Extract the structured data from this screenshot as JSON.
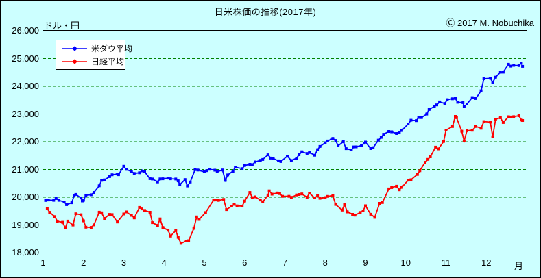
{
  "header": {
    "title": "日米株価の推移(2017年)",
    "copyright": "Ⓒ 2017 M. Nobuchika",
    "unit_label": "ドル・円"
  },
  "axis": {
    "x_unit_label": "月",
    "x_ticks": [
      "1",
      "2",
      "3",
      "4",
      "5",
      "6",
      "7",
      "8",
      "9",
      "10",
      "11",
      "12"
    ],
    "y_ticks": [
      "26,000",
      "25,000",
      "24,000",
      "23,000",
      "22,000",
      "21,000",
      "20,000",
      "19,000",
      "18,000"
    ]
  },
  "colors": {
    "background": "#CCFFFF",
    "grid": "#008000",
    "border": "#000000",
    "dow": "#0000FF",
    "nikkei": "#FF0000"
  },
  "chart_data": {
    "type": "line",
    "title": "日米株価の推移(2017年)",
    "xlabel": "月",
    "ylabel": "ドル・円",
    "xlim": [
      1,
      13
    ],
    "ylim": [
      18000,
      26000
    ],
    "y_tick_step": 1000,
    "grid": "horizontal, dashed, green",
    "legend_position": "top-left",
    "x_encoding": "decimal month (1 = Jan 1, 13 = Dec 31)",
    "series": [
      {
        "name": "米ダウ平均",
        "color": "#0000FF",
        "points": [
          [
            1.06,
            19882
          ],
          [
            1.13,
            19899
          ],
          [
            1.26,
            19887
          ],
          [
            1.32,
            19954
          ],
          [
            1.39,
            19886
          ],
          [
            1.52,
            19827
          ],
          [
            1.58,
            19732
          ],
          [
            1.71,
            19799
          ],
          [
            1.77,
            20068
          ],
          [
            1.81,
            20101
          ],
          [
            1.94,
            19971
          ],
          [
            1.97,
            19864
          ],
          [
            2.0,
            19890
          ],
          [
            2.06,
            20071
          ],
          [
            2.19,
            20090
          ],
          [
            2.26,
            20172
          ],
          [
            2.39,
            20412
          ],
          [
            2.45,
            20611
          ],
          [
            2.52,
            20624
          ],
          [
            2.65,
            20743
          ],
          [
            2.71,
            20810
          ],
          [
            2.84,
            20837
          ],
          [
            2.87,
            20812
          ],
          [
            3.0,
            21116
          ],
          [
            3.06,
            21006
          ],
          [
            3.19,
            20924
          ],
          [
            3.26,
            20858
          ],
          [
            3.39,
            20881
          ],
          [
            3.45,
            20950
          ],
          [
            3.52,
            20915
          ],
          [
            3.65,
            20668
          ],
          [
            3.71,
            20657
          ],
          [
            3.84,
            20550
          ],
          [
            3.9,
            20659
          ],
          [
            3.97,
            20663
          ],
          [
            4.1,
            20689
          ],
          [
            4.16,
            20663
          ],
          [
            4.29,
            20658
          ],
          [
            4.35,
            20591
          ],
          [
            4.39,
            20453
          ],
          [
            4.52,
            20636
          ],
          [
            4.58,
            20404
          ],
          [
            4.65,
            20548
          ],
          [
            4.77,
            20996
          ],
          [
            4.84,
            20981
          ],
          [
            5.0,
            20913
          ],
          [
            5.06,
            20958
          ],
          [
            5.13,
            21007
          ],
          [
            5.26,
            20976
          ],
          [
            5.32,
            20919
          ],
          [
            5.45,
            20982
          ],
          [
            5.52,
            20607
          ],
          [
            5.58,
            20805
          ],
          [
            5.71,
            20938
          ],
          [
            5.77,
            21083
          ],
          [
            5.94,
            21029
          ],
          [
            6.0,
            21144
          ],
          [
            6.13,
            21184
          ],
          [
            6.19,
            21174
          ],
          [
            6.26,
            21272
          ],
          [
            6.39,
            21328
          ],
          [
            6.45,
            21360
          ],
          [
            6.58,
            21528
          ],
          [
            6.65,
            21410
          ],
          [
            6.71,
            21395
          ],
          [
            6.84,
            21311
          ],
          [
            6.9,
            21287
          ],
          [
            7.06,
            21479
          ],
          [
            7.16,
            21320
          ],
          [
            7.29,
            21408
          ],
          [
            7.35,
            21532
          ],
          [
            7.42,
            21638
          ],
          [
            7.55,
            21575
          ],
          [
            7.61,
            21612
          ],
          [
            7.74,
            21513
          ],
          [
            7.81,
            21711
          ],
          [
            7.87,
            21830
          ],
          [
            8.0,
            21963
          ],
          [
            8.06,
            22026
          ],
          [
            8.19,
            22118
          ],
          [
            8.26,
            22048
          ],
          [
            8.32,
            21858
          ],
          [
            8.45,
            21999
          ],
          [
            8.52,
            21750
          ],
          [
            8.65,
            21703
          ],
          [
            8.71,
            21813
          ],
          [
            8.77,
            21814
          ],
          [
            8.9,
            21865
          ],
          [
            8.97,
            21948
          ],
          [
            9.0,
            21988
          ],
          [
            9.13,
            21753
          ],
          [
            9.19,
            21785
          ],
          [
            9.32,
            22057
          ],
          [
            9.39,
            22158
          ],
          [
            9.45,
            22268
          ],
          [
            9.58,
            22371
          ],
          [
            9.65,
            22359
          ],
          [
            9.77,
            22296
          ],
          [
            9.84,
            22341
          ],
          [
            9.9,
            22405
          ],
          [
            10.06,
            22642
          ],
          [
            10.13,
            22775
          ],
          [
            10.26,
            22761
          ],
          [
            10.32,
            22873
          ],
          [
            10.39,
            22872
          ],
          [
            10.52,
            22997
          ],
          [
            10.58,
            23163
          ],
          [
            10.71,
            23274
          ],
          [
            10.77,
            23329
          ],
          [
            10.84,
            23434
          ],
          [
            10.97,
            23377
          ],
          [
            11.03,
            23516
          ],
          [
            11.16,
            23549
          ],
          [
            11.23,
            23563
          ],
          [
            11.29,
            23422
          ],
          [
            11.42,
            23410
          ],
          [
            11.45,
            23271
          ],
          [
            11.52,
            23358
          ],
          [
            11.65,
            23591
          ],
          [
            11.74,
            23558
          ],
          [
            11.87,
            23837
          ],
          [
            11.94,
            24272
          ],
          [
            12.1,
            24290
          ],
          [
            12.16,
            24141
          ],
          [
            12.23,
            24329
          ],
          [
            12.35,
            24505
          ],
          [
            12.42,
            24509
          ],
          [
            12.55,
            24792
          ],
          [
            12.61,
            24727
          ],
          [
            12.68,
            24754
          ],
          [
            12.81,
            24746
          ],
          [
            12.87,
            24838
          ],
          [
            12.9,
            24719
          ]
        ]
      },
      {
        "name": "日経平均",
        "color": "#FF0000",
        "points": [
          [
            1.1,
            19594
          ],
          [
            1.16,
            19454
          ],
          [
            1.29,
            19301
          ],
          [
            1.35,
            19134
          ],
          [
            1.48,
            19096
          ],
          [
            1.55,
            18894
          ],
          [
            1.61,
            19138
          ],
          [
            1.74,
            18997
          ],
          [
            1.81,
            19402
          ],
          [
            1.94,
            19369
          ],
          [
            2.0,
            19148
          ],
          [
            2.06,
            18918
          ],
          [
            2.19,
            18911
          ],
          [
            2.26,
            19002
          ],
          [
            2.39,
            19459
          ],
          [
            2.45,
            19438
          ],
          [
            2.52,
            19235
          ],
          [
            2.65,
            19381
          ],
          [
            2.71,
            19372
          ],
          [
            2.84,
            19107
          ],
          [
            3.0,
            19394
          ],
          [
            3.06,
            19469
          ],
          [
            3.19,
            19345
          ],
          [
            3.26,
            19255
          ],
          [
            3.39,
            19633
          ],
          [
            3.45,
            19578
          ],
          [
            3.52,
            19522
          ],
          [
            3.65,
            19456
          ],
          [
            3.71,
            19085
          ],
          [
            3.84,
            18986
          ],
          [
            3.9,
            19217
          ],
          [
            3.97,
            18909
          ],
          [
            4.1,
            18810
          ],
          [
            4.16,
            18598
          ],
          [
            4.29,
            18798
          ],
          [
            4.35,
            18553
          ],
          [
            4.42,
            18335
          ],
          [
            4.55,
            18419
          ],
          [
            4.61,
            18431
          ],
          [
            4.74,
            18876
          ],
          [
            4.81,
            19290
          ],
          [
            4.87,
            19197
          ],
          [
            5.03,
            19446
          ],
          [
            5.23,
            19896
          ],
          [
            5.29,
            19900
          ],
          [
            5.35,
            19884
          ],
          [
            5.48,
            19919
          ],
          [
            5.55,
            19553
          ],
          [
            5.68,
            19678
          ],
          [
            5.74,
            19743
          ],
          [
            5.81,
            19687
          ],
          [
            5.94,
            19678
          ],
          [
            6.0,
            19861
          ],
          [
            6.13,
            20171
          ],
          [
            6.19,
            19984
          ],
          [
            6.26,
            20013
          ],
          [
            6.39,
            19899
          ],
          [
            6.45,
            19832
          ],
          [
            6.58,
            20067
          ],
          [
            6.61,
            20230
          ],
          [
            6.68,
            20111
          ],
          [
            6.81,
            20153
          ],
          [
            6.87,
            20130
          ],
          [
            6.94,
            20033
          ],
          [
            7.1,
            20032
          ],
          [
            7.16,
            19995
          ],
          [
            7.29,
            20081
          ],
          [
            7.35,
            20098
          ],
          [
            7.42,
            20119
          ],
          [
            7.55,
            19999
          ],
          [
            7.61,
            20145
          ],
          [
            7.74,
            19976
          ],
          [
            7.81,
            20050
          ],
          [
            7.87,
            19960
          ],
          [
            8.0,
            19985
          ],
          [
            8.06,
            20029
          ],
          [
            8.19,
            20055
          ],
          [
            8.26,
            19739
          ],
          [
            8.42,
            19537
          ],
          [
            8.48,
            19729
          ],
          [
            8.55,
            19470
          ],
          [
            8.68,
            19383
          ],
          [
            8.74,
            19353
          ],
          [
            8.87,
            19450
          ],
          [
            8.94,
            19507
          ],
          [
            9.0,
            19691
          ],
          [
            9.13,
            19385
          ],
          [
            9.23,
            19275
          ],
          [
            9.35,
            19777
          ],
          [
            9.42,
            19807
          ],
          [
            9.58,
            20299
          ],
          [
            9.65,
            20347
          ],
          [
            9.77,
            20398
          ],
          [
            9.84,
            20267
          ],
          [
            9.9,
            20356
          ],
          [
            10.06,
            20614
          ],
          [
            10.13,
            20629
          ],
          [
            10.29,
            20823
          ],
          [
            10.35,
            20955
          ],
          [
            10.48,
            21256
          ],
          [
            10.55,
            21363
          ],
          [
            10.61,
            21458
          ],
          [
            10.74,
            21805
          ],
          [
            10.81,
            21740
          ],
          [
            10.94,
            22011
          ],
          [
            11.0,
            22420
          ],
          [
            11.16,
            22548
          ],
          [
            11.23,
            22914
          ],
          [
            11.26,
            22868
          ],
          [
            11.39,
            22381
          ],
          [
            11.45,
            22028
          ],
          [
            11.52,
            22397
          ],
          [
            11.65,
            22416
          ],
          [
            11.74,
            22551
          ],
          [
            11.87,
            22486
          ],
          [
            11.94,
            22725
          ],
          [
            12.1,
            22707
          ],
          [
            12.16,
            22177
          ],
          [
            12.23,
            22811
          ],
          [
            12.35,
            22866
          ],
          [
            12.42,
            22694
          ],
          [
            12.55,
            22901
          ],
          [
            12.61,
            22892
          ],
          [
            12.68,
            22903
          ],
          [
            12.81,
            22939
          ],
          [
            12.87,
            22783
          ],
          [
            12.9,
            22765
          ]
        ]
      }
    ]
  }
}
